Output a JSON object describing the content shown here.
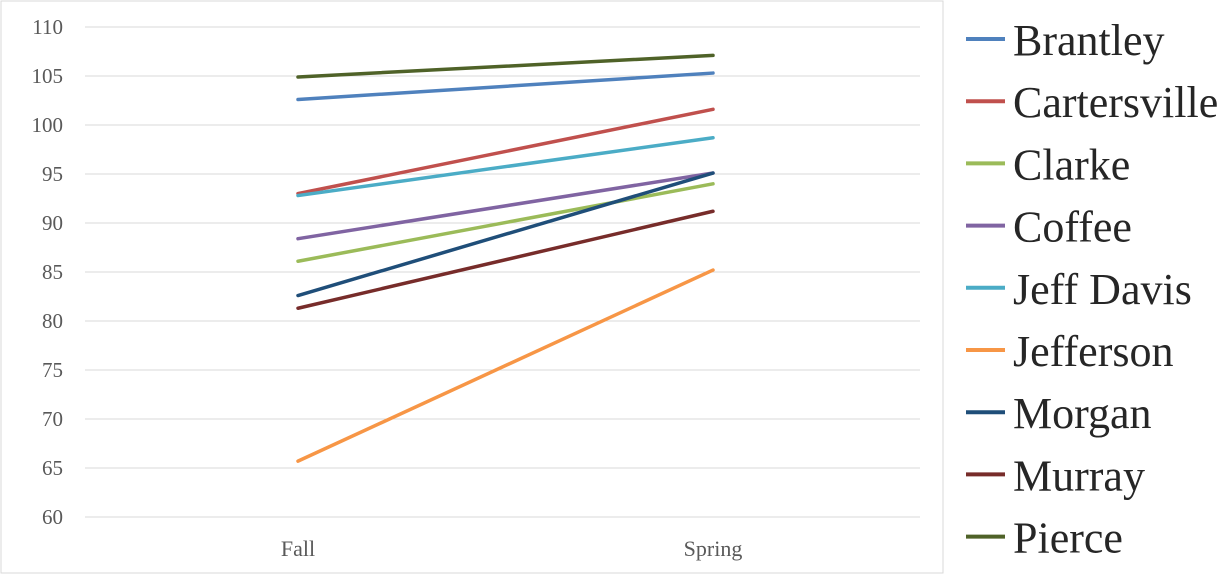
{
  "chart_data": {
    "type": "line",
    "categories": [
      "Fall",
      "Spring"
    ],
    "ylim": [
      60,
      110
    ],
    "yticks": [
      60,
      65,
      70,
      75,
      80,
      85,
      90,
      95,
      100,
      105,
      110
    ],
    "grid": true,
    "legend_position": "right",
    "series": [
      {
        "name": "Brantley",
        "color": "#4f81bd",
        "values": [
          102.6,
          105.3
        ]
      },
      {
        "name": "Cartersville",
        "color": "#c0504d",
        "values": [
          93.0,
          101.6
        ]
      },
      {
        "name": "Clarke",
        "color": "#9bbb59",
        "values": [
          86.1,
          94.0
        ]
      },
      {
        "name": "Coffee",
        "color": "#8064a2",
        "values": [
          88.4,
          95.1
        ]
      },
      {
        "name": "Jeff Davis",
        "color": "#4bacc6",
        "values": [
          92.8,
          98.7
        ]
      },
      {
        "name": "Jefferson",
        "color": "#f79646",
        "values": [
          65.7,
          85.2
        ]
      },
      {
        "name": "Morgan",
        "color": "#1f4e79",
        "values": [
          82.6,
          95.1
        ]
      },
      {
        "name": "Murray",
        "color": "#772c2a",
        "values": [
          81.3,
          91.2
        ]
      },
      {
        "name": "Pierce",
        "color": "#4f6228",
        "values": [
          104.9,
          107.1
        ]
      }
    ]
  }
}
